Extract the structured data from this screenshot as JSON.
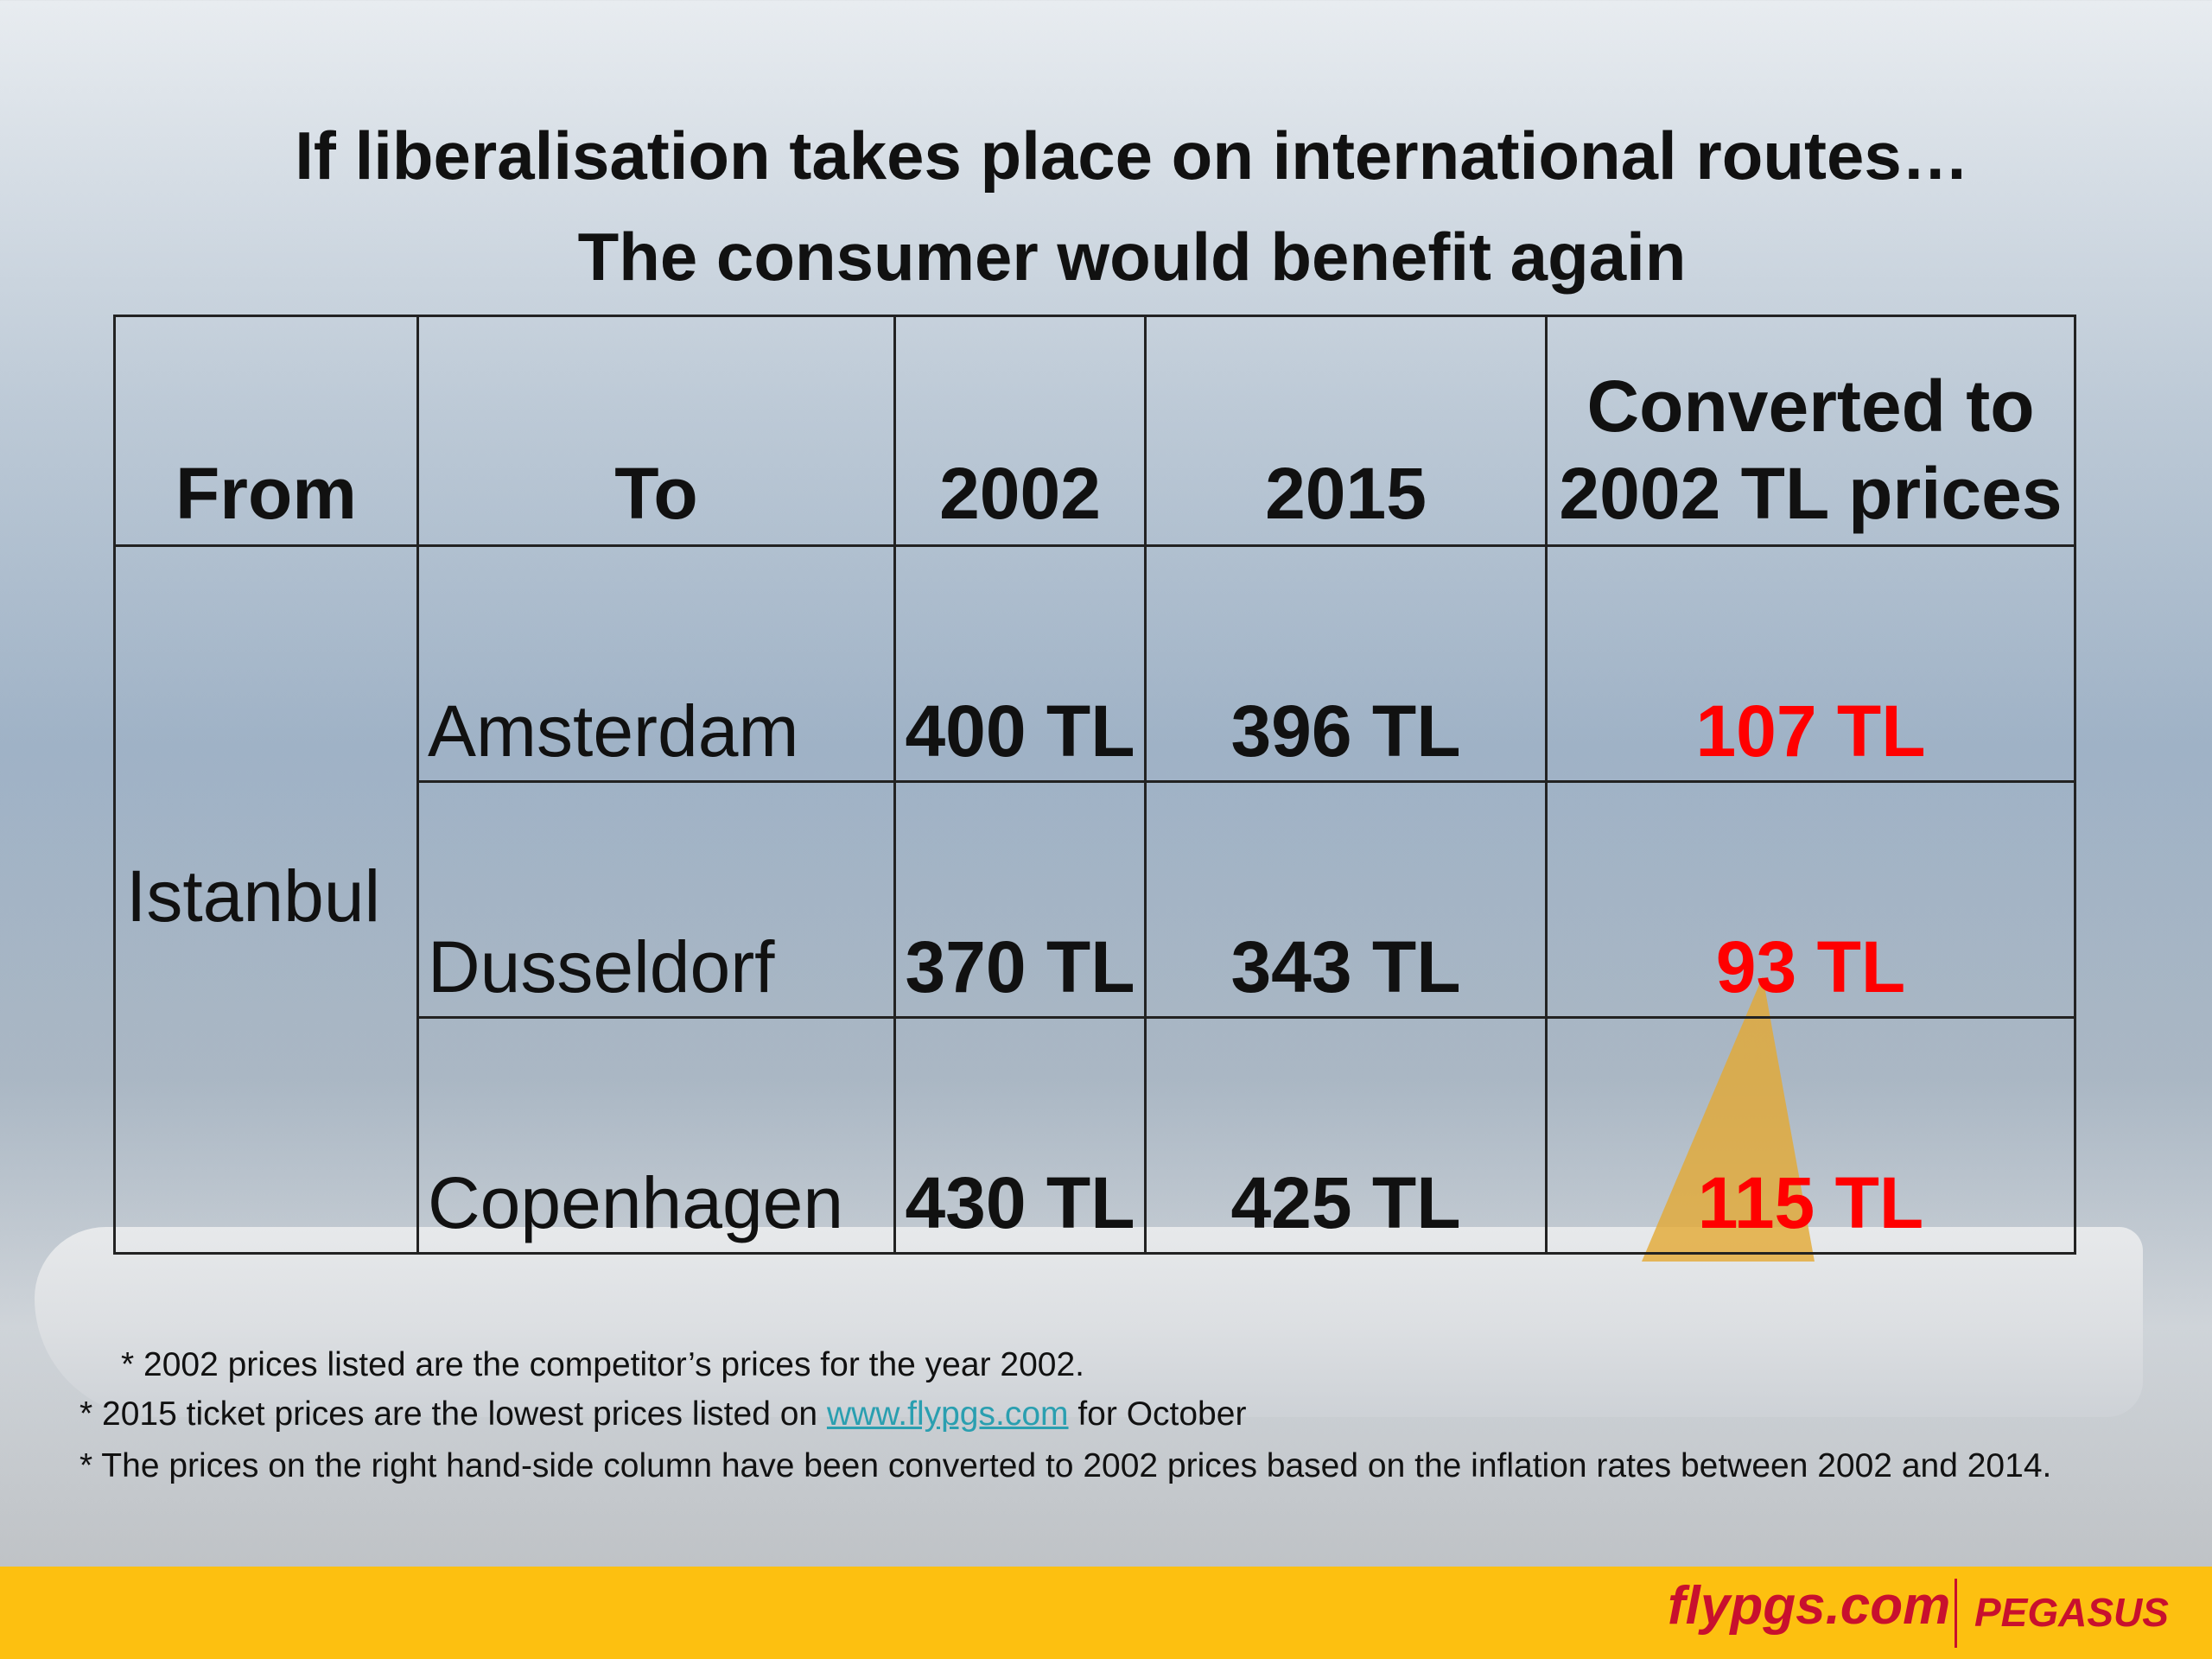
{
  "title": {
    "line1": "If liberalisation takes place on international routes…",
    "line2": "The consumer would benefit again"
  },
  "table": {
    "header": [
      "From",
      "To",
      "2002",
      "2015",
      "Converted to 2002 TL prices"
    ],
    "from": "Istanbul",
    "rows": [
      [
        "Amsterdam",
        "400 TL",
        "396 TL",
        "107 TL"
      ],
      [
        "Dusseldorf",
        "370 TL",
        "343 TL",
        "93 TL"
      ],
      [
        "Copenhagen",
        "430 TL",
        "425 TL",
        "115 TL"
      ]
    ]
  },
  "notes": {
    "note1": "* 2002 prices listed are the competitor’s prices for the year 2002.",
    "note2_pre": "* 2015 ticket prices are the lowest prices listed on ",
    "note2_link": "www.flypgs.com",
    "note2_post": " for October",
    "note3": "* The prices on the right hand-side column  have been converted to 2002 prices based on the inflation rates between 2002 and 2014."
  },
  "footer": {
    "site": "flypgs.com",
    "brand": "PEGASUS"
  }
}
